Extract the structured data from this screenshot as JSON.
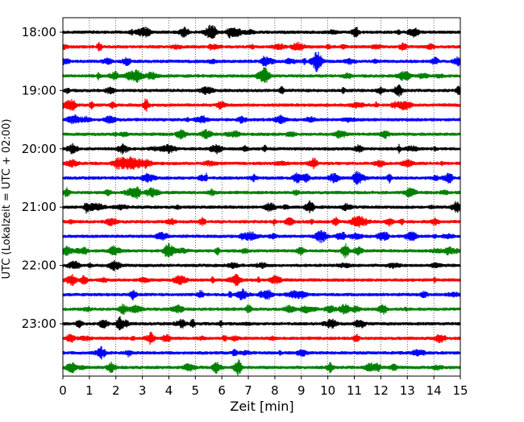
{
  "chart_data": {
    "type": "line",
    "title": "",
    "xlabel": "Zeit  [min]",
    "ylabel": "UTC (Lokalzeit = UTC + 02:00)",
    "xlim": [
      0,
      15
    ],
    "x_ticks": [
      "0",
      "1",
      "2",
      "3",
      "4",
      "5",
      "6",
      "7",
      "8",
      "9",
      "10",
      "11",
      "12",
      "13",
      "14",
      "15"
    ],
    "y_tick_labels": [
      "18:00",
      "19:00",
      "20:00",
      "21:00",
      "22:00",
      "23:00"
    ],
    "grid": "vertical dotted at each minute",
    "colors": [
      "#000000",
      "#ff0000",
      "#0000ff",
      "#008000"
    ],
    "traces": [
      {
        "time": "18:00",
        "color": "#000000"
      },
      {
        "time": "18:15",
        "color": "#ff0000"
      },
      {
        "time": "18:30",
        "color": "#0000ff"
      },
      {
        "time": "18:45",
        "color": "#008000"
      },
      {
        "time": "19:00",
        "color": "#000000"
      },
      {
        "time": "19:15",
        "color": "#ff0000"
      },
      {
        "time": "19:30",
        "color": "#0000ff"
      },
      {
        "time": "19:45",
        "color": "#008000"
      },
      {
        "time": "20:00",
        "color": "#000000"
      },
      {
        "time": "20:15",
        "color": "#ff0000"
      },
      {
        "time": "20:30",
        "color": "#0000ff"
      },
      {
        "time": "20:45",
        "color": "#008000"
      },
      {
        "time": "21:00",
        "color": "#000000"
      },
      {
        "time": "21:15",
        "color": "#ff0000"
      },
      {
        "time": "21:30",
        "color": "#0000ff"
      },
      {
        "time": "21:45",
        "color": "#008000"
      },
      {
        "time": "22:00",
        "color": "#000000"
      },
      {
        "time": "22:15",
        "color": "#ff0000"
      },
      {
        "time": "22:30",
        "color": "#0000ff"
      },
      {
        "time": "22:45",
        "color": "#008000"
      },
      {
        "time": "23:00",
        "color": "#000000"
      },
      {
        "time": "23:15",
        "color": "#ff0000"
      },
      {
        "time": "23:30",
        "color": "#0000ff"
      },
      {
        "time": "23:45",
        "color": "#008000"
      }
    ]
  }
}
